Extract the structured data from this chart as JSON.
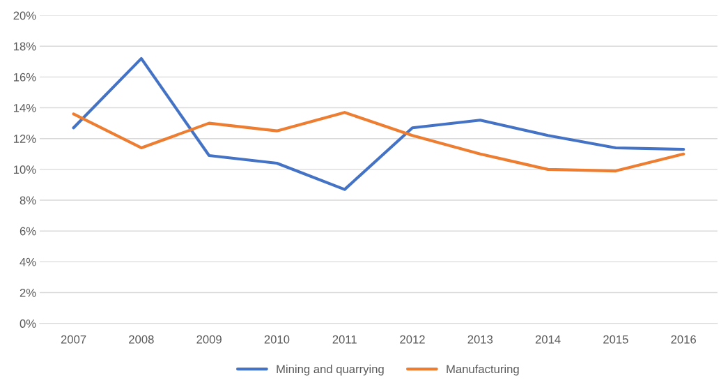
{
  "chart_data": {
    "type": "line",
    "categories": [
      "2007",
      "2008",
      "2009",
      "2010",
      "2011",
      "2012",
      "2013",
      "2014",
      "2015",
      "2016"
    ],
    "series": [
      {
        "name": "Mining and quarrying",
        "color": "#4472c4",
        "values": [
          12.7,
          17.2,
          10.9,
          10.4,
          8.7,
          12.7,
          13.2,
          12.2,
          11.4,
          11.3
        ]
      },
      {
        "name": "Manufacturing",
        "color": "#ed7d31",
        "values": [
          13.6,
          11.4,
          13.0,
          12.5,
          13.7,
          12.2,
          11.0,
          10.0,
          9.9,
          11.0
        ]
      }
    ],
    "ylim": [
      0,
      20
    ],
    "yticks": [
      {
        "value": 0,
        "label": "0%"
      },
      {
        "value": 2,
        "label": "2%"
      },
      {
        "value": 4,
        "label": "4%"
      },
      {
        "value": 6,
        "label": "6%"
      },
      {
        "value": 8,
        "label": "8%"
      },
      {
        "value": 10,
        "label": "10%"
      },
      {
        "value": 12,
        "label": "12%"
      },
      {
        "value": 14,
        "label": "14%"
      },
      {
        "value": 16,
        "label": "16%"
      },
      {
        "value": 18,
        "label": "18%"
      },
      {
        "value": 20,
        "label": "20%"
      }
    ],
    "grid": "y",
    "legend": "bottom",
    "marker": "none",
    "line_style": "solid"
  }
}
